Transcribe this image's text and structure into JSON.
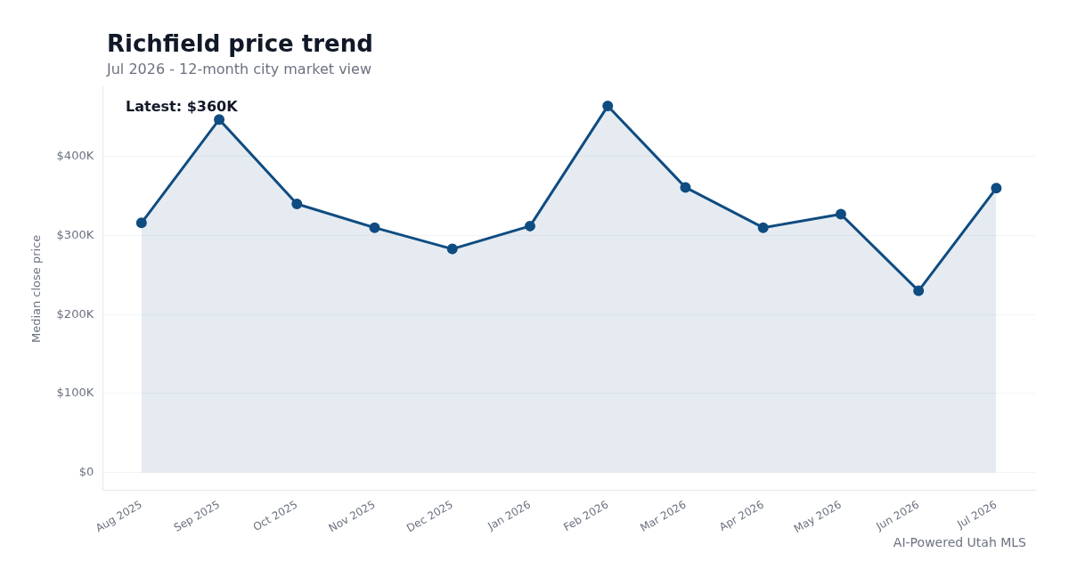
{
  "chart_data": {
    "type": "area",
    "title": "Richfield price trend",
    "subtitle": "Jul 2026 - 12-month city market view",
    "ylabel": "Median close price",
    "categories": [
      "Aug 2025",
      "Sep 2025",
      "Oct 2025",
      "Nov 2025",
      "Dec 2025",
      "Jan 2026",
      "Feb 2026",
      "Mar 2026",
      "Apr 2026",
      "May 2026",
      "Jun 2026",
      "Jul 2026"
    ],
    "series": [
      {
        "color": "#0f4c81",
        "values": [
          316000,
          447000,
          340000,
          310000,
          283000,
          312000,
          464000,
          361000,
          310000,
          327000,
          230000,
          360000
        ]
      }
    ],
    "ylim": [
      -23000,
      488000
    ],
    "yticks": [
      {
        "value": 0,
        "label": "$0"
      },
      {
        "value": 100000,
        "label": "$100K"
      },
      {
        "value": 200000,
        "label": "$200K"
      },
      {
        "value": 300000,
        "label": "$300K"
      },
      {
        "value": 400000,
        "label": "$400K"
      }
    ],
    "grid": "y",
    "marker": "circle",
    "line_style": "solid",
    "annotations": [
      "Latest: $360K",
      "AI-Powered Utah MLS"
    ]
  }
}
